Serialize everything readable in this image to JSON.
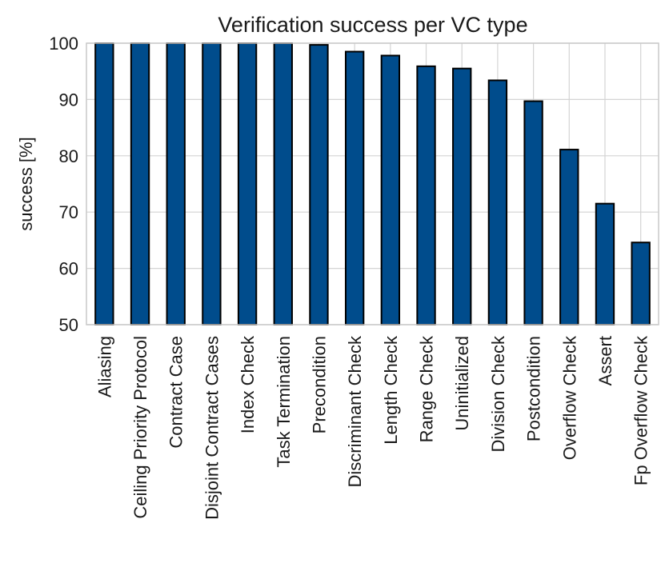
{
  "chart_data": {
    "type": "bar",
    "title": "Verification success per VC type",
    "xlabel": "",
    "ylabel": "success [%]",
    "ylim": [
      50,
      100
    ],
    "yticks": [
      50,
      60,
      70,
      80,
      90,
      100
    ],
    "grid": true,
    "legend": "none",
    "bar_color": "#004c8c",
    "bar_edge_color": "#000000",
    "categories": [
      "Aliasing",
      "Ceiling Priority Protocol",
      "Contract Case",
      "Disjoint Contract Cases",
      "Index Check",
      "Task Termination",
      "Precondition",
      "Discriminant Check",
      "Length Check",
      "Range Check",
      "Uninitialized",
      "Division Check",
      "Postcondition",
      "Overflow Check",
      "Assert",
      "Fp Overflow Check"
    ],
    "values": [
      100,
      100,
      100,
      100,
      100,
      100,
      99.7,
      98.5,
      97.8,
      95.9,
      95.5,
      93.4,
      89.7,
      81.1,
      71.5,
      64.6
    ]
  }
}
